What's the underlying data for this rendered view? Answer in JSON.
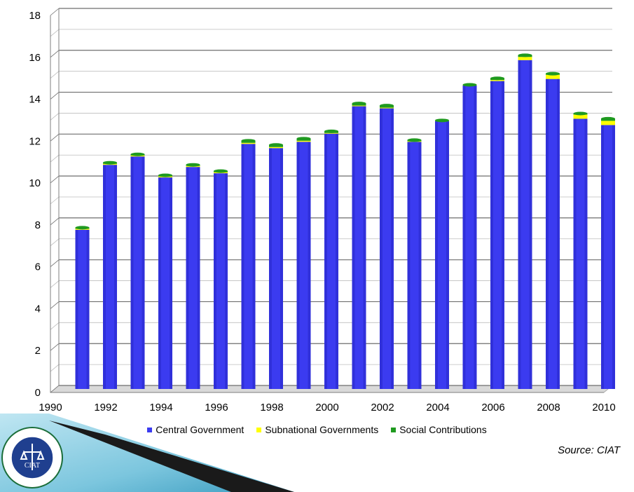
{
  "chart_data": {
    "type": "bar",
    "stacked": true,
    "title": "",
    "xlabel": "",
    "ylabel": "",
    "ylim": [
      0,
      18
    ],
    "yticks": [
      0,
      2,
      4,
      6,
      8,
      10,
      12,
      14,
      16,
      18
    ],
    "xticks": [
      "1990",
      "1992",
      "1994",
      "1996",
      "1998",
      "2000",
      "2002",
      "2004",
      "2006",
      "2008",
      "2010"
    ],
    "categories": [
      "1991",
      "1992",
      "1993",
      "1994",
      "1995",
      "1996",
      "1997",
      "1998",
      "1999",
      "2000",
      "2001",
      "2002",
      "2003",
      "2004",
      "2005",
      "2006",
      "2007",
      "2008",
      "2009",
      "2010"
    ],
    "series": [
      {
        "name": "Central Government",
        "color": "#3b3bf0",
        "values": [
          7.6,
          10.7,
          11.1,
          10.1,
          10.6,
          10.3,
          11.7,
          11.5,
          11.8,
          12.2,
          13.5,
          13.4,
          11.8,
          12.8,
          14.5,
          14.7,
          15.7,
          14.8,
          12.9,
          12.6
        ]
      },
      {
        "name": "Subnational Governments",
        "color": "#ffff00",
        "values": [
          0.05,
          0.05,
          0.05,
          0.05,
          0.05,
          0.05,
          0.05,
          0.05,
          0.05,
          0.02,
          0.03,
          0.03,
          0.03,
          0.02,
          0.02,
          0.05,
          0.15,
          0.2,
          0.2,
          0.2
        ]
      },
      {
        "name": "Social Contributions",
        "color": "#1f9a1f",
        "values": [
          0.05,
          0.05,
          0.05,
          0.05,
          0.05,
          0.05,
          0.1,
          0.1,
          0.1,
          0.08,
          0.1,
          0.1,
          0.05,
          0.0,
          0.0,
          0.08,
          0.08,
          0.05,
          0.05,
          0.1
        ]
      }
    ],
    "grid": true,
    "legend": "bottom"
  },
  "source_text": "Source: CIAT",
  "logo": {
    "icon": "ciat-seal-icon",
    "text": "INTER-AMERICAN CENTER OF TAX ADMINISTRATIONS · ESTABLISHED IN 1967 · CIAT"
  }
}
